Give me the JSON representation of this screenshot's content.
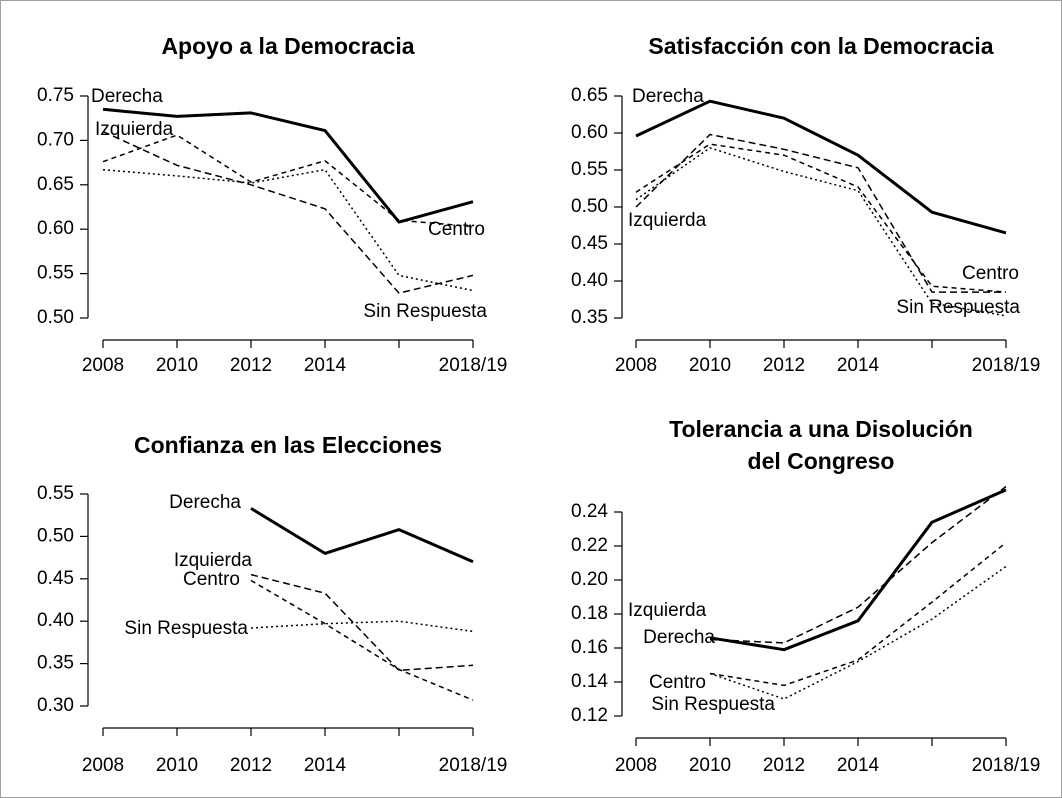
{
  "chart_data": [
    {
      "type": "line",
      "title": "Apoyo a la Democracia",
      "categories": [
        "2008",
        "2010",
        "2012",
        "2014",
        null,
        "2018/19"
      ],
      "ylim": [
        0.5,
        0.75
      ],
      "yticks": [
        {
          "value": 0.5,
          "label": "0.50"
        },
        {
          "value": 0.55,
          "label": "0.55"
        },
        {
          "value": 0.6,
          "label": "0.60"
        },
        {
          "value": 0.65,
          "label": "0.65"
        },
        {
          "value": 0.7,
          "label": "0.70"
        },
        {
          "value": 0.75,
          "label": "0.75"
        }
      ],
      "series": [
        {
          "name": "Derecha",
          "color": "#000000",
          "values": [
            0.735,
            0.727,
            0.731,
            0.711,
            0.608,
            0.631
          ]
        },
        {
          "name": "Izquierda",
          "color": "#000000",
          "values": [
            0.71,
            0.672,
            0.65,
            0.623,
            0.528,
            0.548
          ]
        },
        {
          "name": "Centro",
          "color": "#000000",
          "values": [
            0.676,
            0.706,
            0.653,
            0.677,
            0.61,
            0.603
          ]
        },
        {
          "name": "Sin Respuesta",
          "color": "#000000",
          "values": [
            0.667,
            0.66,
            0.652,
            0.667,
            0.548,
            0.531
          ]
        }
      ]
    },
    {
      "type": "line",
      "title": "Satisfacción con la Democracia",
      "categories": [
        "2008",
        "2010",
        "2012",
        "2014",
        null,
        "2018/19"
      ],
      "ylim": [
        0.35,
        0.65
      ],
      "yticks": [
        {
          "value": 0.35,
          "label": "0.35"
        },
        {
          "value": 0.4,
          "label": "0.40"
        },
        {
          "value": 0.45,
          "label": "0.45"
        },
        {
          "value": 0.5,
          "label": "0.50"
        },
        {
          "value": 0.55,
          "label": "0.55"
        },
        {
          "value": 0.6,
          "label": "0.60"
        },
        {
          "value": 0.65,
          "label": "0.65"
        }
      ],
      "series": [
        {
          "name": "Derecha",
          "color": "#000000",
          "values": [
            0.596,
            0.643,
            0.62,
            0.57,
            0.493,
            0.465
          ]
        },
        {
          "name": "Izquierda",
          "color": "#000000",
          "values": [
            0.5,
            0.598,
            0.578,
            0.553,
            0.385,
            0.385
          ]
        },
        {
          "name": "Centro",
          "color": "#000000",
          "values": [
            0.52,
            0.585,
            0.57,
            0.527,
            0.393,
            0.385
          ]
        },
        {
          "name": "Sin Respuesta",
          "color": "#000000",
          "values": [
            0.51,
            0.58,
            0.548,
            0.522,
            0.37,
            0.353
          ]
        }
      ]
    },
    {
      "type": "line",
      "title": "Confianza en las Elecciones",
      "categories": [
        "2008",
        "2010",
        "2012",
        "2014",
        null,
        "2018/19"
      ],
      "ylim": [
        0.3,
        0.55
      ],
      "yticks": [
        {
          "value": 0.3,
          "label": "0.30"
        },
        {
          "value": 0.35,
          "label": "0.35"
        },
        {
          "value": 0.4,
          "label": "0.40"
        },
        {
          "value": 0.45,
          "label": "0.45"
        },
        {
          "value": 0.5,
          "label": "0.50"
        },
        {
          "value": 0.55,
          "label": "0.55"
        }
      ],
      "series": [
        {
          "name": "Derecha",
          "color": "#000000",
          "values": [
            null,
            null,
            0.533,
            0.48,
            0.508,
            0.47
          ]
        },
        {
          "name": "Izquierda",
          "color": "#000000",
          "values": [
            null,
            null,
            0.455,
            0.433,
            0.342,
            0.348
          ]
        },
        {
          "name": "Centro",
          "color": "#000000",
          "values": [
            null,
            null,
            0.448,
            0.397,
            0.343,
            0.307
          ]
        },
        {
          "name": "Sin Respuesta",
          "color": "#000000",
          "values": [
            null,
            null,
            0.392,
            0.397,
            0.4,
            0.388
          ]
        }
      ]
    },
    {
      "type": "line",
      "title": [
        "Tolerancia a una Disolución",
        "del Congreso"
      ],
      "categories": [
        "2008",
        "2010",
        "2012",
        "2014",
        null,
        "2018/19"
      ],
      "ylim": [
        0.12,
        0.24
      ],
      "yticks": [
        0.12,
        0.14,
        0.16,
        0.18,
        {
          "value": 0.2,
          "label": "0.20"
        },
        0.22,
        0.24
      ],
      "series": [
        {
          "name": "Derecha",
          "color": "#000000",
          "values": [
            null,
            0.166,
            0.159,
            0.176,
            0.234,
            0.253
          ]
        },
        {
          "name": "Izquierda",
          "color": "#000000",
          "values": [
            null,
            0.165,
            0.163,
            0.184,
            0.222,
            0.255
          ]
        },
        {
          "name": "Centro",
          "color": "#000000",
          "values": [
            null,
            0.145,
            0.138,
            0.153,
            0.187,
            0.222
          ]
        },
        {
          "name": "Sin Respuesta",
          "color": "#000000",
          "values": [
            null,
            0.145,
            0.13,
            0.152,
            0.177,
            0.208
          ]
        }
      ]
    }
  ]
}
